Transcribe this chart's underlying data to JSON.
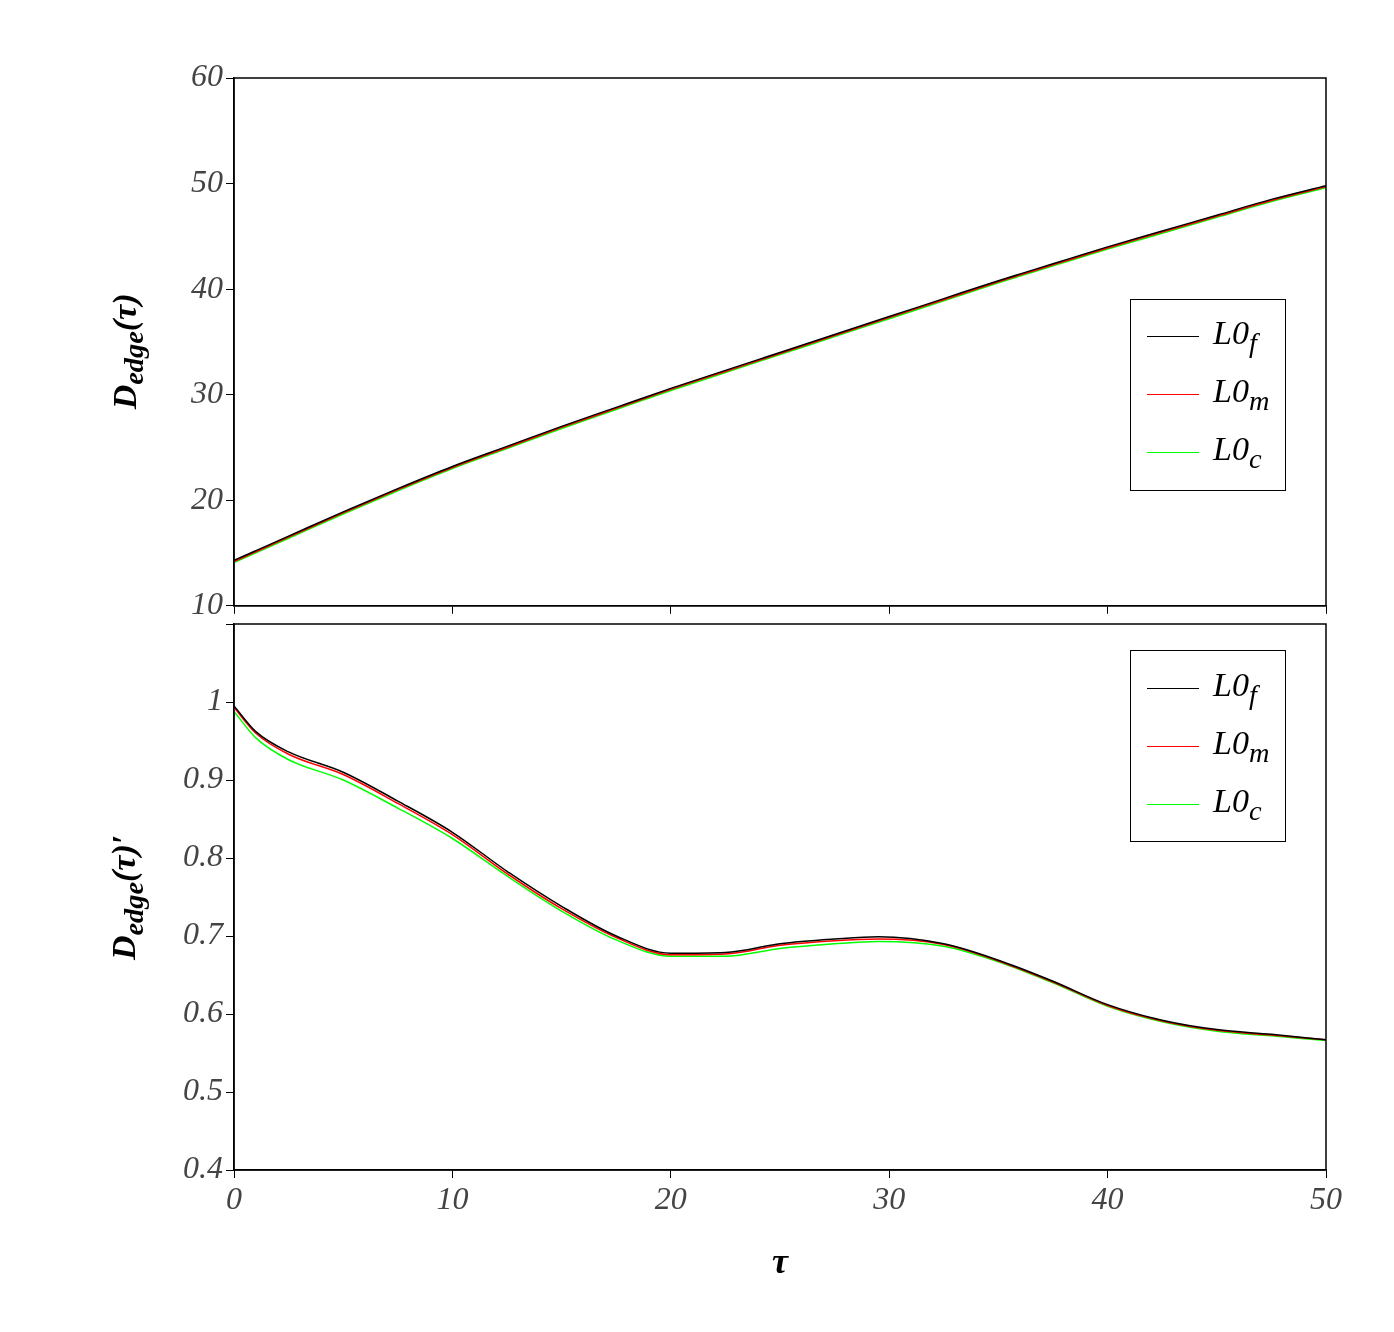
{
  "chart_data": [
    {
      "type": "line",
      "ylabel": "D$_{edge}$(τ)",
      "legend": "right",
      "tick_labels": "y",
      "x": [
        0,
        2.5,
        5,
        7.5,
        10,
        12.5,
        15,
        17.5,
        20,
        22.5,
        25,
        27.5,
        30,
        32.5,
        35,
        37.5,
        40,
        42.5,
        45,
        47.5,
        50
      ],
      "xlim": [
        0,
        50
      ],
      "xticks": [
        0,
        10,
        20,
        30,
        40,
        50
      ],
      "ylim": [
        10,
        60
      ],
      "yticks": [
        10,
        20,
        30,
        40,
        50,
        60
      ],
      "series": [
        {
          "name": "L0$_{f}$",
          "color": "#000000",
          "values": [
            14.3,
            16.6,
            18.9,
            21.1,
            23.2,
            25.1,
            27.0,
            28.8,
            30.6,
            32.3,
            34.0,
            35.7,
            37.4,
            39.1,
            40.8,
            42.4,
            44.0,
            45.5,
            47.0,
            48.5,
            49.8
          ]
        },
        {
          "name": "L0$_{m}$",
          "color": "#ff0000",
          "values": [
            14.2,
            16.5,
            18.8,
            21.0,
            23.1,
            25.0,
            26.9,
            28.7,
            30.5,
            32.2,
            33.9,
            35.6,
            37.3,
            39.0,
            40.7,
            42.3,
            43.9,
            45.4,
            46.9,
            48.4,
            49.7
          ]
        },
        {
          "name": "L0$_{c}$",
          "color": "#00ff00",
          "values": [
            14.1,
            16.4,
            18.7,
            20.9,
            23.0,
            24.9,
            26.8,
            28.6,
            30.4,
            32.1,
            33.8,
            35.5,
            37.2,
            38.9,
            40.6,
            42.2,
            43.8,
            45.3,
            46.8,
            48.3,
            49.6
          ]
        }
      ]
    },
    {
      "type": "line",
      "xlabel": "τ",
      "ylabel": "D$_{edge}$(τ)′",
      "legend": "top right",
      "x": [
        0,
        1,
        2.5,
        5,
        7.5,
        10,
        12.5,
        15,
        17.5,
        20,
        22.5,
        25,
        27.5,
        29.5,
        32.5,
        35,
        37.5,
        40,
        42.5,
        45,
        47.5,
        50
      ],
      "xlim": [
        0,
        50
      ],
      "xticks": [
        0,
        10,
        20,
        30,
        40,
        50
      ],
      "ylim": [
        0.4,
        1.1
      ],
      "yticks": [
        0.4,
        0.5,
        0.6,
        0.7,
        0.8,
        0.9,
        1,
        {
          "value": 1.1,
          "label": null
        }
      ],
      "series": [
        {
          "name": "L0$_{f}$",
          "color": "#000000",
          "values": [
            0.995,
            0.962,
            0.936,
            0.91,
            0.873,
            0.833,
            0.783,
            0.738,
            0.7,
            0.678,
            0.679,
            0.69,
            0.696,
            0.699,
            0.69,
            0.669,
            0.642,
            0.612,
            0.592,
            0.58,
            0.574,
            0.567
          ]
        },
        {
          "name": "L0$_{m}$",
          "color": "#ff0000",
          "values": [
            0.993,
            0.96,
            0.933,
            0.907,
            0.87,
            0.83,
            0.78,
            0.735,
            0.698,
            0.676,
            0.677,
            0.688,
            0.694,
            0.696,
            0.689,
            0.668,
            0.641,
            0.611,
            0.591,
            0.579,
            0.573,
            0.567
          ]
        },
        {
          "name": "L0$_{c}$",
          "color": "#00ff00",
          "values": [
            0.988,
            0.954,
            0.926,
            0.9,
            0.864,
            0.825,
            0.777,
            0.732,
            0.695,
            0.674,
            0.674,
            0.684,
            0.69,
            0.693,
            0.687,
            0.667,
            0.64,
            0.61,
            0.59,
            0.578,
            0.572,
            0.566
          ]
        }
      ]
    }
  ]
}
